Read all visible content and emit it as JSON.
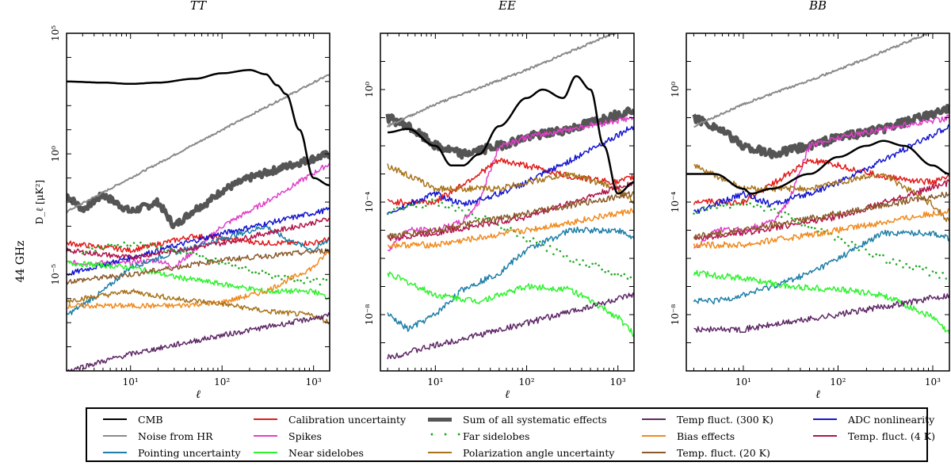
{
  "row_label": "44 GHz",
  "colors": {
    "CMB": "#000000",
    "Noise from HR": "#8a8a8a",
    "Pointing uncertainty": "#1f7fa8",
    "Calibration uncertainty": "#e21b1b",
    "Spikes": "#e040c8",
    "Near sidelobes": "#2ef22e",
    "Sum of all systematic effects": "#555555",
    "Far sidelobes": "#22aa22",
    "Polarization angle uncertainty": "#a8731a",
    "Temp fluct. (300 K)": "#5e2866",
    "Bias effects": "#f08a1e",
    "Temp. fluct. (20 K)": "#8a5a2a",
    "ADC nonlinearity": "#1515d0",
    "Temp. fluct. (4 K)": "#b0154a"
  },
  "legend": [
    {
      "label": "CMB",
      "style": "line",
      "width": 2.5
    },
    {
      "label": "Calibration uncertainty",
      "style": "line",
      "width": 1.5
    },
    {
      "label": "Sum of all systematic effects",
      "style": "line",
      "width": 5
    },
    {
      "label": "Temp fluct. (300 K)",
      "style": "line",
      "width": 1.5
    },
    {
      "label": "ADC nonlinearity",
      "style": "line",
      "width": 1.5
    },
    {
      "label": "Noise from HR",
      "style": "line",
      "width": 2
    },
    {
      "label": "Spikes",
      "style": "line",
      "width": 1.5
    },
    {
      "label": "Far sidelobes",
      "style": "dots",
      "width": 2
    },
    {
      "label": "Bias effects",
      "style": "line",
      "width": 1.5
    },
    {
      "label": "Temp. fluct. (4 K)",
      "style": "line",
      "width": 1.5
    },
    {
      "label": "Pointing uncertainty",
      "style": "line",
      "width": 1.5
    },
    {
      "label": "Near sidelobes",
      "style": "line",
      "width": 1.5
    },
    {
      "label": "Polarization angle uncertainty",
      "style": "line",
      "width": 1.5
    },
    {
      "label": "Temp. fluct. (20 K)",
      "style": "line",
      "width": 1.5
    }
  ],
  "chart_data": [
    {
      "type": "line",
      "title": "TT",
      "xlabel": "ℓ",
      "ylabel": "D_ℓ [μK²]",
      "xscale": "log",
      "yscale": "log",
      "xlim": [
        2,
        1500
      ],
      "ylim": [
        1e-09,
        100000
      ],
      "xticks": [
        {
          "v": 10,
          "label": "10¹"
        },
        {
          "v": 100,
          "label": "10²"
        },
        {
          "v": 1000,
          "label": "10³"
        }
      ],
      "yticks": [
        {
          "v": 100000,
          "label": "10⁵"
        },
        {
          "v": 1,
          "label": "10⁰"
        },
        {
          "v": 1e-05,
          "label": "10⁻⁵"
        }
      ],
      "series": [
        {
          "name": "CMB",
          "x": [
            2,
            5,
            10,
            20,
            50,
            100,
            200,
            300,
            400,
            500,
            700,
            1000,
            1500
          ],
          "y": [
            1000,
            900,
            800,
            900,
            1300,
            2200,
            3000,
            2000,
            700,
            300,
            10,
            0.1,
            0.05
          ]
        },
        {
          "name": "Noise from HR",
          "x": [
            2,
            10,
            100,
            1500
          ],
          "y": [
            0.004,
            0.1,
            10,
            2000
          ]
        },
        {
          "name": "Sum of all systematic effects",
          "x": [
            2,
            3,
            5,
            10,
            20,
            30,
            50,
            70,
            100,
            200,
            500,
            1500
          ],
          "y": [
            0.02,
            0.005,
            0.02,
            0.004,
            0.01,
            0.001,
            0.005,
            0.01,
            0.03,
            0.1,
            0.3,
            1
          ]
        },
        {
          "name": "Spikes",
          "x": [
            2,
            10,
            20,
            30,
            50,
            100,
            300,
            1500
          ],
          "y": [
            3e-05,
            3e-05,
            4e-05,
            2e-05,
            0.0001,
            0.001,
            0.01,
            0.4
          ]
        },
        {
          "name": "Calibration uncertainty",
          "x": [
            2,
            10,
            50,
            100,
            300,
            1000,
            1500
          ],
          "y": [
            0.0002,
            0.0001,
            0.0004,
            0.0003,
            0.0002,
            0.0002,
            0.0003
          ]
        },
        {
          "name": "Pointing uncertainty",
          "x": [
            2,
            5,
            10,
            30,
            100,
            300,
            500,
            1000,
            1500
          ],
          "y": [
            2e-07,
            2e-06,
            2e-05,
            8e-05,
            0.0003,
            0.001,
            0.0003,
            0.0001,
            0.0003
          ]
        },
        {
          "name": "ADC nonlinearity",
          "x": [
            2,
            10,
            100,
            1500
          ],
          "y": [
            1e-05,
            5e-05,
            0.0005,
            0.005
          ]
        },
        {
          "name": "Temp. fluct. (4 K)",
          "x": [
            2,
            10,
            100,
            1500
          ],
          "y": [
            0.0001,
            5e-05,
            0.0002,
            0.002
          ]
        },
        {
          "name": "Far sidelobes",
          "x": [
            3,
            10,
            30,
            100,
            300,
            1000,
            1500
          ],
          "y": [
            0.0001,
            0.0002,
            0.0001,
            3e-05,
            1e-05,
            5e-06,
            5e-06
          ]
        },
        {
          "name": "Near sidelobes",
          "x": [
            2,
            10,
            30,
            100,
            300,
            1000,
            1500
          ],
          "y": [
            3e-05,
            2e-05,
            8e-06,
            4e-06,
            2e-06,
            2e-06,
            1e-06
          ]
        },
        {
          "name": "Bias effects",
          "x": [
            2,
            10,
            30,
            100,
            300,
            1000,
            1500
          ],
          "y": [
            5e-07,
            5e-07,
            5e-07,
            7e-07,
            2e-06,
            2e-05,
            0.0001
          ]
        },
        {
          "name": "Polarization angle uncertainty",
          "x": [
            2,
            10,
            30,
            100,
            300,
            1000,
            1500
          ],
          "y": [
            8e-07,
            2e-06,
            1e-06,
            6e-07,
            3e-07,
            2e-07,
            1e-07
          ]
        },
        {
          "name": "Temp. fluct. (20 K)",
          "x": [
            2,
            10,
            100,
            1500
          ],
          "y": [
            5e-06,
            1e-05,
            4e-05,
            0.0001
          ]
        },
        {
          "name": "Temp fluct. (300 K)",
          "x": [
            2,
            10,
            100,
            1500
          ],
          "y": [
            1e-09,
            5e-09,
            3e-08,
            2e-07
          ]
        }
      ]
    },
    {
      "type": "line",
      "title": "EE",
      "xlabel": "ℓ",
      "ylabel": "",
      "xscale": "log",
      "yscale": "log",
      "xlim": [
        2.5,
        1500
      ],
      "ylim": [
        1e-10,
        100
      ],
      "xticks": [
        {
          "v": 10,
          "label": "10¹"
        },
        {
          "v": 100,
          "label": "10²"
        },
        {
          "v": 1000,
          "label": "10³"
        }
      ],
      "yticks": [
        {
          "v": 1,
          "label": "10⁰"
        },
        {
          "v": 0.0001,
          "label": "10⁻⁴"
        },
        {
          "v": 1e-08,
          "label": "10⁻⁸"
        }
      ],
      "series": [
        {
          "name": "CMB",
          "x": [
            3,
            5,
            10,
            15,
            20,
            30,
            50,
            100,
            150,
            250,
            350,
            500,
            700,
            1000,
            1500
          ],
          "y": [
            0.03,
            0.04,
            0.01,
            0.002,
            0.002,
            0.005,
            0.05,
            0.5,
            1,
            0.5,
            3,
            1,
            0.01,
            0.0002,
            0.0005
          ]
        },
        {
          "name": "Noise from HR",
          "x": [
            3,
            10,
            100,
            1500
          ],
          "y": [
            0.05,
            0.3,
            5,
            200
          ]
        },
        {
          "name": "Sum of all systematic effects",
          "x": [
            3,
            5,
            10,
            20,
            50,
            100,
            300,
            1500
          ],
          "y": [
            0.1,
            0.05,
            0.01,
            0.005,
            0.01,
            0.02,
            0.04,
            0.2
          ]
        },
        {
          "name": "Spikes",
          "x": [
            3,
            5,
            10,
            20,
            30,
            50,
            100,
            300,
            1500
          ],
          "y": [
            2e-06,
            1e-05,
            1e-05,
            2e-05,
            0.0001,
            0.01,
            0.02,
            0.04,
            0.1
          ]
        },
        {
          "name": "Calibration uncertainty",
          "x": [
            3,
            10,
            50,
            100,
            300,
            1000,
            1500
          ],
          "y": [
            0.0001,
            0.0001,
            0.003,
            0.002,
            0.0008,
            0.0005,
            0.0008
          ]
        },
        {
          "name": "ADC nonlinearity",
          "x": [
            3,
            10,
            20,
            50,
            100,
            300,
            1500
          ],
          "y": [
            4e-05,
            0.0002,
            8e-05,
            0.0002,
            0.0005,
            0.003,
            0.05
          ]
        },
        {
          "name": "Far sidelobes",
          "x": [
            3,
            10,
            30,
            100,
            300,
            1000,
            1500
          ],
          "y": [
            5e-05,
            0.0001,
            3e-05,
            5e-06,
            1e-06,
            3e-07,
            2e-07
          ]
        },
        {
          "name": "Polarization angle uncertainty",
          "x": [
            3,
            10,
            20,
            50,
            100,
            300,
            1000,
            1500
          ],
          "y": [
            0.002,
            0.0003,
            0.0003,
            0.0003,
            0.0005,
            0.001,
            0.0003,
            0.0001
          ]
        },
        {
          "name": "Temp. fluct. (4 K)",
          "x": [
            3,
            10,
            100,
            1500
          ],
          "y": [
            5e-06,
            8e-06,
            3e-05,
            0.0005
          ]
        },
        {
          "name": "Temp. fluct. (20 K)",
          "x": [
            3,
            10,
            100,
            1500
          ],
          "y": [
            6e-06,
            1e-05,
            4e-05,
            0.0002
          ]
        },
        {
          "name": "Bias effects",
          "x": [
            3,
            10,
            100,
            1500
          ],
          "y": [
            3e-06,
            3e-06,
            1e-05,
            5e-05
          ]
        },
        {
          "name": "Pointing uncertainty",
          "x": [
            3,
            5,
            10,
            20,
            50,
            100,
            300,
            1000,
            1500
          ],
          "y": [
            1e-08,
            3e-09,
            1e-08,
            8e-08,
            3e-07,
            2e-06,
            1e-05,
            1e-05,
            5e-06
          ]
        },
        {
          "name": "Near sidelobes",
          "x": [
            3,
            10,
            30,
            100,
            300,
            1000,
            1500
          ],
          "y": [
            3e-07,
            5e-08,
            3e-08,
            1e-07,
            8e-08,
            8e-09,
            2e-09
          ]
        },
        {
          "name": "Temp fluct. (300 K)",
          "x": [
            3,
            10,
            100,
            1500
          ],
          "y": [
            3e-10,
            8e-10,
            5e-09,
            5e-08
          ]
        }
      ]
    },
    {
      "type": "line",
      "title": "BB",
      "xlabel": "ℓ",
      "ylabel": "",
      "xscale": "log",
      "yscale": "log",
      "xlim": [
        2.5,
        1500
      ],
      "ylim": [
        1e-10,
        100
      ],
      "xticks": [
        {
          "v": 10,
          "label": "10¹"
        },
        {
          "v": 100,
          "label": "10²"
        },
        {
          "v": 1000,
          "label": "10³"
        }
      ],
      "yticks": [
        {
          "v": 1,
          "label": "10⁰"
        },
        {
          "v": 0.0001,
          "label": "10⁻⁴"
        },
        {
          "v": 1e-08,
          "label": "10⁻⁸"
        }
      ],
      "series": [
        {
          "name": "CMB",
          "x": [
            2.5,
            5,
            10,
            12,
            20,
            50,
            100,
            200,
            300,
            500,
            1000,
            1500
          ],
          "y": [
            0.001,
            0.001,
            0.0003,
            0.0002,
            0.0003,
            0.001,
            0.004,
            0.01,
            0.015,
            0.01,
            0.002,
            0.001
          ]
        },
        {
          "name": "Noise from HR",
          "x": [
            3,
            10,
            100,
            1500
          ],
          "y": [
            0.05,
            0.3,
            5,
            200
          ]
        },
        {
          "name": "Sum of all systematic effects",
          "x": [
            3,
            5,
            10,
            20,
            50,
            100,
            300,
            1500
          ],
          "y": [
            0.1,
            0.05,
            0.01,
            0.005,
            0.01,
            0.02,
            0.04,
            0.2
          ]
        },
        {
          "name": "Spikes",
          "x": [
            3,
            5,
            10,
            20,
            30,
            50,
            100,
            300,
            1500
          ],
          "y": [
            2e-06,
            1e-05,
            1e-05,
            2e-05,
            0.0001,
            0.01,
            0.02,
            0.04,
            0.1
          ]
        },
        {
          "name": "Calibration uncertainty",
          "x": [
            3,
            10,
            50,
            100,
            300,
            1000,
            1500
          ],
          "y": [
            0.0001,
            0.0001,
            0.003,
            0.002,
            0.0008,
            0.0005,
            0.0008
          ]
        },
        {
          "name": "ADC nonlinearity",
          "x": [
            3,
            10,
            20,
            50,
            100,
            300,
            1500
          ],
          "y": [
            4e-05,
            0.0002,
            8e-05,
            0.0002,
            0.0005,
            0.003,
            0.05
          ]
        },
        {
          "name": "Far sidelobes",
          "x": [
            3,
            10,
            30,
            100,
            300,
            1000,
            1500
          ],
          "y": [
            5e-05,
            0.0001,
            3e-05,
            5e-06,
            1e-06,
            3e-07,
            2e-07
          ]
        },
        {
          "name": "Polarization angle uncertainty",
          "x": [
            3,
            10,
            20,
            50,
            100,
            300,
            1000,
            1500
          ],
          "y": [
            0.002,
            0.0003,
            0.0003,
            0.0003,
            0.0005,
            0.001,
            8e-05,
            2e-05
          ]
        },
        {
          "name": "Temp. fluct. (4 K)",
          "x": [
            3,
            10,
            100,
            1500
          ],
          "y": [
            5e-06,
            8e-06,
            3e-05,
            0.0005
          ]
        },
        {
          "name": "Temp. fluct. (20 K)",
          "x": [
            3,
            10,
            100,
            1500
          ],
          "y": [
            6e-06,
            1e-05,
            4e-05,
            0.0002
          ]
        },
        {
          "name": "Bias effects",
          "x": [
            3,
            10,
            100,
            1500
          ],
          "y": [
            3e-06,
            3e-06,
            1e-05,
            5e-05
          ]
        },
        {
          "name": "Pointing uncertainty",
          "x": [
            3,
            5,
            10,
            20,
            50,
            100,
            300,
            1000,
            1500
          ],
          "y": [
            3e-08,
            3e-08,
            5e-08,
            1e-07,
            3e-07,
            1e-06,
            8e-06,
            8e-06,
            5e-06
          ]
        },
        {
          "name": "Near sidelobes",
          "x": [
            3,
            10,
            30,
            100,
            300,
            1000,
            1500
          ],
          "y": [
            3e-07,
            2e-07,
            1e-07,
            8e-08,
            5e-08,
            8e-09,
            2e-09
          ]
        },
        {
          "name": "Temp fluct. (300 K)",
          "x": [
            3,
            10,
            100,
            1500
          ],
          "y": [
            3e-09,
            3e-09,
            1e-08,
            5e-08
          ]
        }
      ]
    }
  ]
}
